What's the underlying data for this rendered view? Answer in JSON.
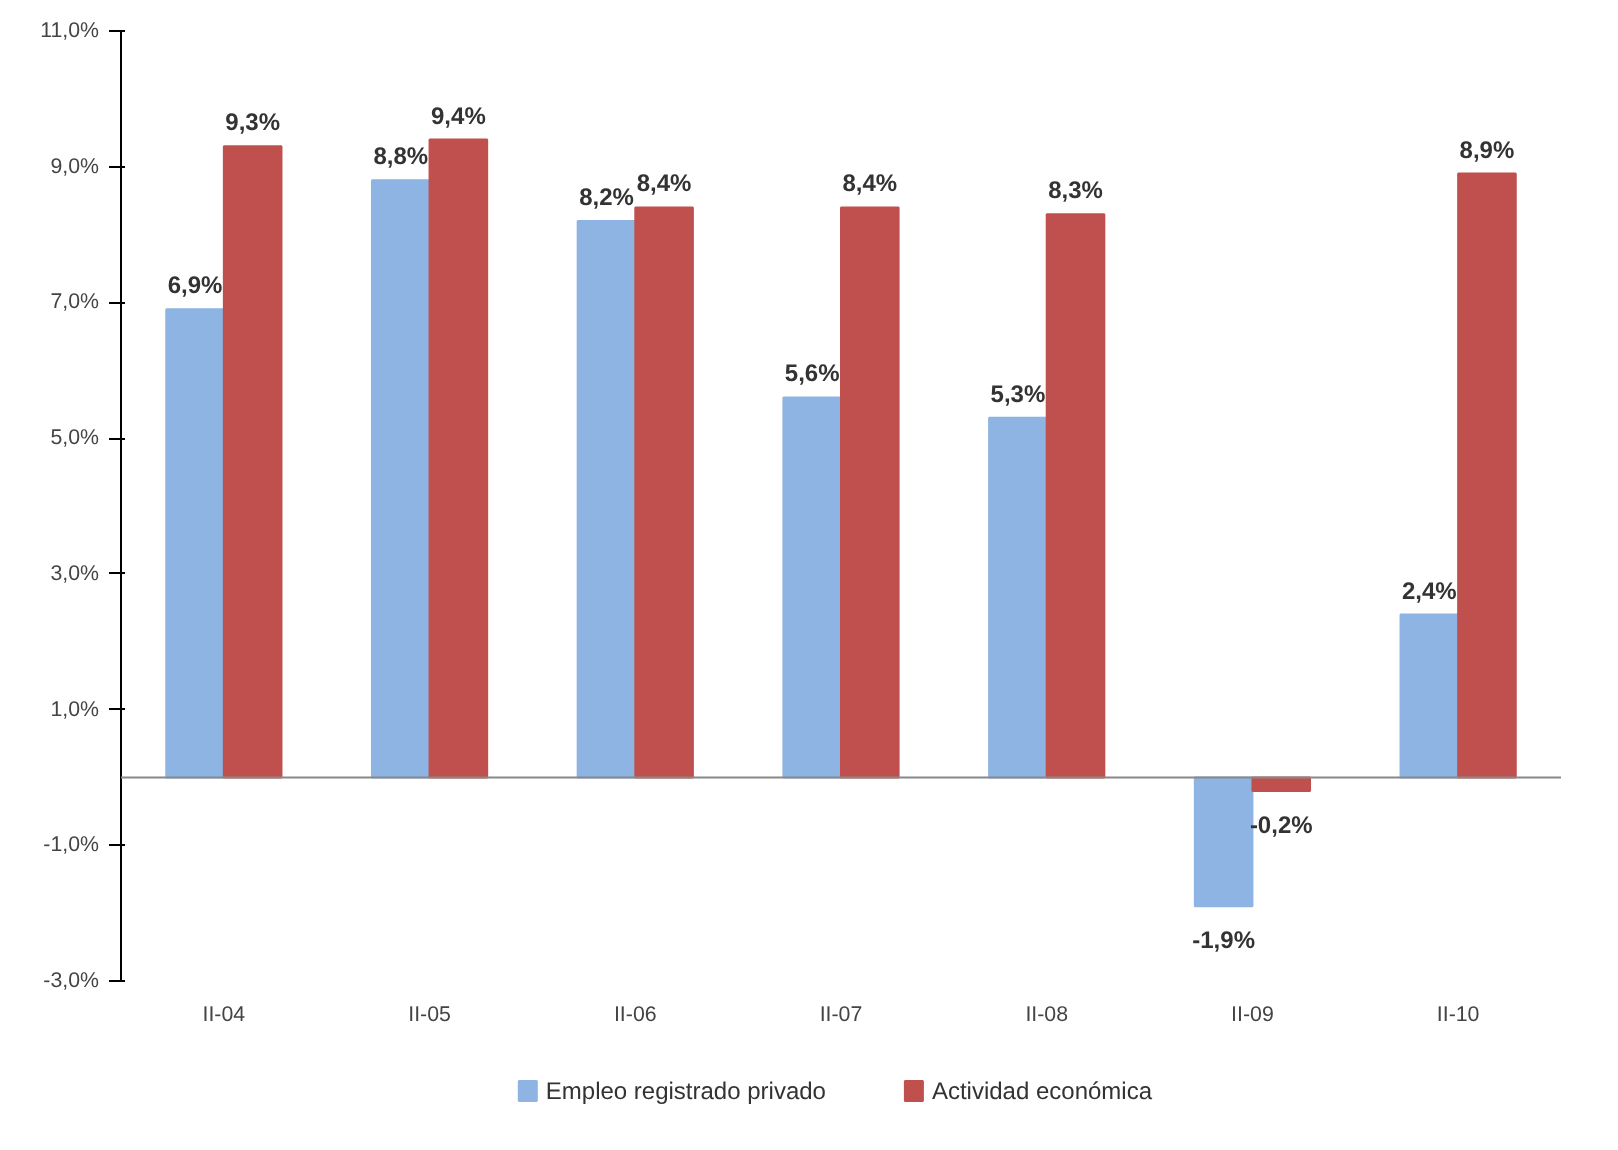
{
  "chart_data": {
    "type": "bar",
    "categories": [
      "II-04",
      "II-05",
      "II-06",
      "II-07",
      "II-08",
      "II-09",
      "II-10"
    ],
    "series": [
      {
        "name": "Empleo registrado privado",
        "color": "#8db4e2",
        "values": [
          6.9,
          8.8,
          8.2,
          5.6,
          5.3,
          -1.9,
          2.4
        ],
        "value_labels": [
          "6,9%",
          "8,8%",
          "8,2%",
          "5,6%",
          "5,3%",
          "-1,9%",
          "2,4%"
        ]
      },
      {
        "name": "Actividad económica",
        "color": "#c0504d",
        "values": [
          9.3,
          9.4,
          8.4,
          8.4,
          8.3,
          -0.2,
          8.9
        ],
        "value_labels": [
          "9,3%",
          "9,4%",
          "8,4%",
          "8,4%",
          "8,3%",
          "-0,2%",
          "8,9%"
        ]
      }
    ],
    "ylim": [
      -3,
      11
    ],
    "yticks": [
      {
        "value": -3,
        "label": "-3,0%"
      },
      {
        "value": -1,
        "label": "-1,0%"
      },
      {
        "value": 1,
        "label": "1,0%"
      },
      {
        "value": 3,
        "label": "3,0%"
      },
      {
        "value": 5,
        "label": "5,0%"
      },
      {
        "value": 7,
        "label": "7,0%"
      },
      {
        "value": 9,
        "label": "9,0%"
      },
      {
        "value": 11,
        "label": "11,0%"
      }
    ],
    "grid": false,
    "legend": "bottom"
  }
}
